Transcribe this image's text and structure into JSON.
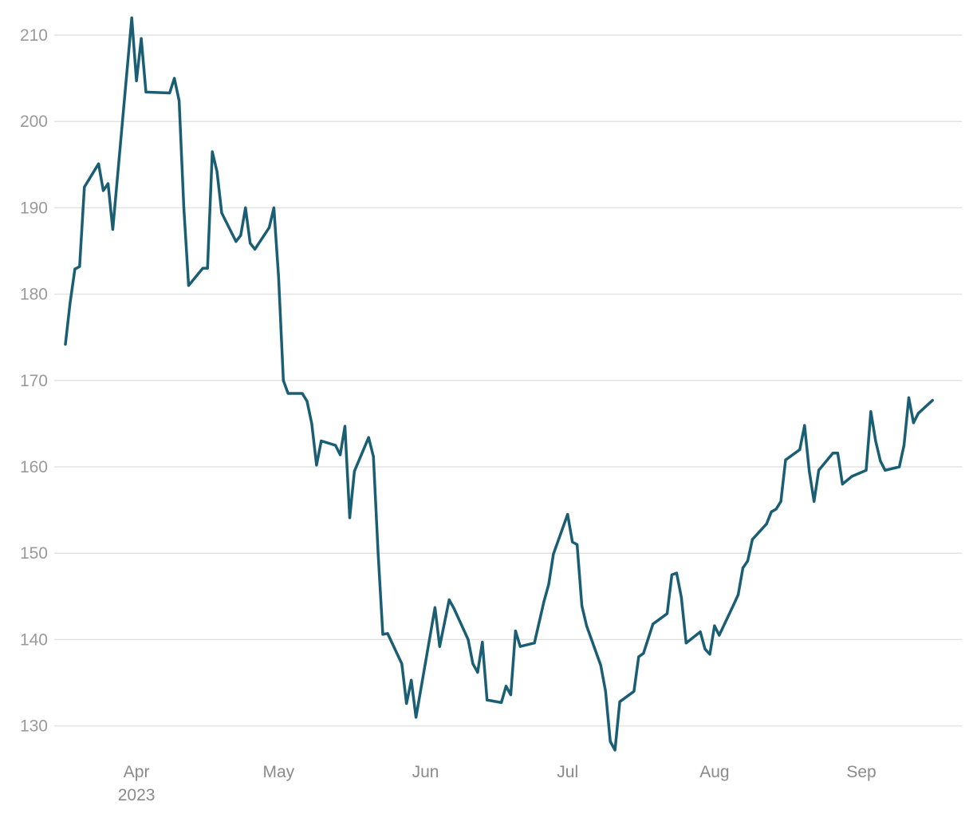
{
  "chart_data": {
    "type": "line",
    "title": "",
    "xlabel": "",
    "ylabel": "",
    "ylim": [
      125,
      214
    ],
    "y_ticks": [
      130,
      140,
      150,
      160,
      170,
      180,
      190,
      200,
      210
    ],
    "grid": "horizontal",
    "x_range": [
      "2023-03-17",
      "2023-09-19"
    ],
    "x_ticks": [
      {
        "date": "2023-04-01",
        "label": "Apr",
        "sublabel": "2023"
      },
      {
        "date": "2023-05-01",
        "label": "May",
        "sublabel": ""
      },
      {
        "date": "2023-06-01",
        "label": "Jun",
        "sublabel": ""
      },
      {
        "date": "2023-07-01",
        "label": "Jul",
        "sublabel": ""
      },
      {
        "date": "2023-08-01",
        "label": "Aug",
        "sublabel": ""
      },
      {
        "date": "2023-09-01",
        "label": "Sep",
        "sublabel": ""
      }
    ],
    "colors": {
      "line": "#1a5e73",
      "grid": "#e3e3e3",
      "tick_text": "#9a9a9a"
    },
    "series": [
      {
        "name": "",
        "points": [
          [
            "2023-03-17",
            174.2
          ],
          [
            "2023-03-18",
            179.0
          ],
          [
            "2023-03-19",
            182.9
          ],
          [
            "2023-03-20",
            183.2
          ],
          [
            "2023-03-21",
            192.4
          ],
          [
            "2023-03-24",
            195.1
          ],
          [
            "2023-03-25",
            192.0
          ],
          [
            "2023-03-26",
            192.8
          ],
          [
            "2023-03-27",
            187.5
          ],
          [
            "2023-03-31",
            212.0
          ],
          [
            "2023-04-01",
            204.7
          ],
          [
            "2023-04-02",
            209.6
          ],
          [
            "2023-04-03",
            203.4
          ],
          [
            "2023-04-08",
            203.3
          ],
          [
            "2023-04-09",
            205.0
          ],
          [
            "2023-04-10",
            202.4
          ],
          [
            "2023-04-11",
            190.0
          ],
          [
            "2023-04-12",
            181.0
          ],
          [
            "2023-04-15",
            183.0
          ],
          [
            "2023-04-16",
            183.0
          ],
          [
            "2023-04-17",
            196.5
          ],
          [
            "2023-04-18",
            194.2
          ],
          [
            "2023-04-19",
            189.4
          ],
          [
            "2023-04-22",
            186.1
          ],
          [
            "2023-04-23",
            186.8
          ],
          [
            "2023-04-24",
            190.0
          ],
          [
            "2023-04-25",
            185.9
          ],
          [
            "2023-04-26",
            185.2
          ],
          [
            "2023-04-29",
            187.7
          ],
          [
            "2023-04-30",
            190.0
          ],
          [
            "2023-05-01",
            182.0
          ],
          [
            "2023-05-02",
            170.0
          ],
          [
            "2023-05-03",
            168.5
          ],
          [
            "2023-05-06",
            168.5
          ],
          [
            "2023-05-07",
            167.6
          ],
          [
            "2023-05-08",
            165.0
          ],
          [
            "2023-05-09",
            160.2
          ],
          [
            "2023-05-10",
            163.0
          ],
          [
            "2023-05-13",
            162.5
          ],
          [
            "2023-05-14",
            161.4
          ],
          [
            "2023-05-15",
            164.7
          ],
          [
            "2023-05-16",
            154.1
          ],
          [
            "2023-05-17",
            159.5
          ],
          [
            "2023-05-20",
            163.4
          ],
          [
            "2023-05-21",
            161.2
          ],
          [
            "2023-05-22",
            150.0
          ],
          [
            "2023-05-23",
            140.6
          ],
          [
            "2023-05-24",
            140.7
          ],
          [
            "2023-05-27",
            137.2
          ],
          [
            "2023-05-28",
            132.6
          ],
          [
            "2023-05-29",
            135.3
          ],
          [
            "2023-05-30",
            131.0
          ],
          [
            "2023-06-03",
            143.7
          ],
          [
            "2023-06-04",
            139.2
          ],
          [
            "2023-06-06",
            144.6
          ],
          [
            "2023-06-07",
            143.6
          ],
          [
            "2023-06-10",
            140.0
          ],
          [
            "2023-06-11",
            137.2
          ],
          [
            "2023-06-12",
            136.2
          ],
          [
            "2023-06-13",
            139.7
          ],
          [
            "2023-06-14",
            133.0
          ],
          [
            "2023-06-17",
            132.7
          ],
          [
            "2023-06-18",
            134.6
          ],
          [
            "2023-06-19",
            133.6
          ],
          [
            "2023-06-20",
            141.0
          ],
          [
            "2023-06-21",
            139.2
          ],
          [
            "2023-06-24",
            139.6
          ],
          [
            "2023-06-26",
            144.4
          ],
          [
            "2023-06-27",
            146.4
          ],
          [
            "2023-06-28",
            149.9
          ],
          [
            "2023-07-01",
            154.5
          ],
          [
            "2023-07-02",
            151.3
          ],
          [
            "2023-07-03",
            151.0
          ],
          [
            "2023-07-04",
            143.9
          ],
          [
            "2023-07-05",
            141.6
          ],
          [
            "2023-07-08",
            137.0
          ],
          [
            "2023-07-09",
            134.0
          ],
          [
            "2023-07-10",
            128.2
          ],
          [
            "2023-07-11",
            127.2
          ],
          [
            "2023-07-12",
            132.8
          ],
          [
            "2023-07-15",
            134.0
          ],
          [
            "2023-07-16",
            138.0
          ],
          [
            "2023-07-17",
            138.4
          ],
          [
            "2023-07-19",
            141.8
          ],
          [
            "2023-07-22",
            143.0
          ],
          [
            "2023-07-23",
            147.5
          ],
          [
            "2023-07-24",
            147.7
          ],
          [
            "2023-07-25",
            144.9
          ],
          [
            "2023-07-26",
            139.6
          ],
          [
            "2023-07-29",
            140.9
          ],
          [
            "2023-07-30",
            138.9
          ],
          [
            "2023-07-31",
            138.3
          ],
          [
            "2023-08-01",
            141.6
          ],
          [
            "2023-08-02",
            140.5
          ],
          [
            "2023-08-05",
            144.0
          ],
          [
            "2023-08-06",
            145.2
          ],
          [
            "2023-08-07",
            148.3
          ],
          [
            "2023-08-08",
            149.1
          ],
          [
            "2023-08-09",
            151.6
          ],
          [
            "2023-08-12",
            153.4
          ],
          [
            "2023-08-13",
            154.8
          ],
          [
            "2023-08-14",
            155.1
          ],
          [
            "2023-08-15",
            156.0
          ],
          [
            "2023-08-16",
            160.8
          ],
          [
            "2023-08-19",
            162.0
          ],
          [
            "2023-08-20",
            164.8
          ],
          [
            "2023-08-21",
            159.5
          ],
          [
            "2023-08-22",
            156.0
          ],
          [
            "2023-08-23",
            159.6
          ],
          [
            "2023-08-26",
            161.6
          ],
          [
            "2023-08-27",
            161.6
          ],
          [
            "2023-08-28",
            158.0
          ],
          [
            "2023-08-30",
            158.9
          ],
          [
            "2023-09-02",
            159.6
          ],
          [
            "2023-09-03",
            166.4
          ],
          [
            "2023-09-04",
            163.0
          ],
          [
            "2023-09-05",
            160.7
          ],
          [
            "2023-09-06",
            159.6
          ],
          [
            "2023-09-09",
            160.0
          ],
          [
            "2023-09-10",
            162.5
          ],
          [
            "2023-09-11",
            168.0
          ],
          [
            "2023-09-12",
            165.1
          ],
          [
            "2023-09-13",
            166.2
          ],
          [
            "2023-09-16",
            167.7
          ]
        ]
      }
    ]
  }
}
